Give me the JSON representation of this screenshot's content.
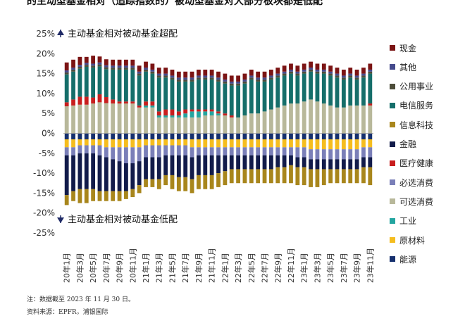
{
  "header": {
    "title": "的主动型基金相对（追踪指数的）被动型基金对大部分板块都是低配"
  },
  "footer": {
    "note": "注：数据截至 2023 年 11 月 30 日。",
    "source": "资料来源：EPFR，浦银国际"
  },
  "legend": [
    {
      "label": "现金",
      "color": "#7b1414"
    },
    {
      "label": "其他",
      "color": "#454a8c"
    },
    {
      "label": "公用事业",
      "color": "#4d4d3a"
    },
    {
      "label": "电信服务",
      "color": "#156e6a"
    },
    {
      "label": "信息科技",
      "color": "#a8861c"
    },
    {
      "label": "金融",
      "color": "#121b4a"
    },
    {
      "label": "医疗健康",
      "color": "#c81e1e"
    },
    {
      "label": "必选消费",
      "color": "#7a7fb8"
    },
    {
      "label": "可选消费",
      "color": "#b8b89a"
    },
    {
      "label": "工业",
      "color": "#23a5a0"
    },
    {
      "label": "原材料",
      "color": "#f5bd1f"
    },
    {
      "label": "能源",
      "color": "#16306e"
    }
  ],
  "chart_data": {
    "type": "bar",
    "stacked": true,
    "title": "",
    "xlabel": "",
    "ylabel": "",
    "ylim": [
      -25,
      25
    ],
    "y_ticks": [
      25,
      20,
      15,
      10,
      5,
      0,
      -5,
      -10,
      -15,
      -20,
      -25
    ],
    "y_tick_labels": [
      "25%",
      "20%",
      "15%",
      "10%",
      "5%",
      "0%",
      "-5%",
      "-10%",
      "-15%",
      "-20%",
      "-25%"
    ],
    "annotations": {
      "top": "主动基金相对被动基金超配",
      "bottom": "主动基金相对被动基金低配"
    },
    "categories": [
      "20年1月",
      "20年2月",
      "20年3月",
      "20年4月",
      "20年5月",
      "20年6月",
      "20年7月",
      "20年8月",
      "20年9月",
      "20年10月",
      "20年11月",
      "20年12月",
      "21年1月",
      "21年2月",
      "21年3月",
      "21年4月",
      "21年5月",
      "21年6月",
      "21年7月",
      "21年8月",
      "21年9月",
      "21年10月",
      "21年11月",
      "21年12月",
      "22年1月",
      "22年2月",
      "22年3月",
      "22年4月",
      "22年5月",
      "22年6月",
      "22年7月",
      "22年8月",
      "22年9月",
      "22年10月",
      "22年11月",
      "22年12月",
      "23年1月",
      "23年2月",
      "23年3月",
      "23年4月",
      "23年5月",
      "23年6月",
      "23年7月",
      "23年8月",
      "23年9月",
      "23年10月",
      "23年11月"
    ],
    "x_tick_labels": [
      "20年1月",
      "20年3月",
      "20年5月",
      "20年7月",
      "20年9月",
      "20年11月",
      "21年1月",
      "21年3月",
      "21年5月",
      "21年7月",
      "21年9月",
      "21年11月",
      "22年1月",
      "22年3月",
      "22年5月",
      "22年7月",
      "22年9月",
      "22年11月",
      "23年1月",
      "23年3月",
      "23年5月",
      "23年7月",
      "23年9月",
      "23年11月"
    ],
    "series": [
      {
        "name": "可选消费",
        "values": [
          6.8,
          7.0,
          7.2,
          7.2,
          7.5,
          7.8,
          7.6,
          7.5,
          7.5,
          7.5,
          7.5,
          6.5,
          6.5,
          6.5,
          4.0,
          4.0,
          4.0,
          4.0,
          4.0,
          4.0,
          4.0,
          4.5,
          4.5,
          4.5,
          4.5,
          4.0,
          4.0,
          4.5,
          5.0,
          5.0,
          5.5,
          6.0,
          6.5,
          7.0,
          7.5,
          7.5,
          8.0,
          8.5,
          8.0,
          7.5,
          7.0,
          6.5,
          6.5,
          7.0,
          7.0,
          7.0,
          7.0
        ]
      },
      {
        "name": "工业",
        "values": [
          0.0,
          0.0,
          0.0,
          0.0,
          0.0,
          0.0,
          0.0,
          0.0,
          0.0,
          0.0,
          0.0,
          0.0,
          0.5,
          0.5,
          0.5,
          0.5,
          0.5,
          0.5,
          1.0,
          1.5,
          1.5,
          1.0,
          1.0,
          0.5,
          0.0,
          0.0,
          0.0,
          0.0,
          0.0,
          0.0,
          0.0,
          0.0,
          0.0,
          0.0,
          0.0,
          0.0,
          0.0,
          0.0,
          0.0,
          0.0,
          0.0,
          0.0,
          0.0,
          0.0,
          0.0,
          0.0,
          0.0
        ]
      },
      {
        "name": "医疗健康",
        "values": [
          1.0,
          1.5,
          2.0,
          2.0,
          1.5,
          2.0,
          1.5,
          1.0,
          0.5,
          0.5,
          0.5,
          0.5,
          1.0,
          1.0,
          1.0,
          1.5,
          1.5,
          1.0,
          1.0,
          0.5,
          0.5,
          0.5,
          0.5,
          0.5,
          0.5,
          0.5,
          0.0,
          0.0,
          0.0,
          0.0,
          0.0,
          0.0,
          0.0,
          0.0,
          0.0,
          0.0,
          0.0,
          0.0,
          0.0,
          0.0,
          0.0,
          0.0,
          0.0,
          0.0,
          0.0,
          0.0,
          0.5
        ]
      },
      {
        "name": "电信服务",
        "values": [
          7.0,
          7.0,
          7.0,
          7.5,
          7.5,
          7.0,
          7.0,
          7.5,
          8.0,
          8.0,
          8.0,
          7.5,
          7.5,
          7.0,
          8.5,
          8.0,
          7.5,
          7.5,
          7.0,
          7.0,
          7.5,
          7.5,
          7.5,
          7.5,
          7.5,
          7.5,
          8.0,
          8.0,
          8.5,
          8.0,
          7.5,
          7.5,
          7.5,
          7.5,
          7.5,
          7.0,
          7.0,
          7.0,
          7.0,
          7.5,
          7.5,
          7.5,
          7.0,
          7.0,
          6.5,
          7.0,
          7.5
        ]
      },
      {
        "name": "公用事业",
        "values": [
          0.5,
          0.5,
          0.5,
          0.5,
          0.5,
          0.5,
          0.5,
          0.5,
          0.5,
          0.5,
          0.5,
          0.5,
          0.5,
          0.5,
          0.5,
          0.5,
          0.5,
          0.5,
          0.5,
          0.5,
          0.5,
          0.5,
          0.5,
          0.5,
          0.5,
          0.5,
          0.5,
          0.5,
          0.5,
          0.5,
          0.5,
          0.5,
          0.5,
          0.5,
          0.5,
          0.5,
          0.5,
          0.5,
          0.5,
          0.5,
          0.5,
          0.5,
          0.5,
          0.5,
          0.5,
          0.5,
          0.5
        ]
      },
      {
        "name": "其他",
        "values": [
          0.5,
          0.5,
          0.5,
          0.5,
          0.5,
          0.5,
          0.5,
          0.5,
          0.5,
          0.5,
          0.5,
          0.5,
          0.5,
          0.5,
          0.5,
          0.5,
          0.5,
          0.5,
          0.5,
          0.5,
          0.5,
          0.5,
          0.5,
          0.5,
          0.5,
          0.5,
          0.5,
          0.5,
          0.5,
          0.5,
          0.5,
          0.5,
          0.5,
          0.5,
          0.5,
          0.5,
          0.5,
          0.5,
          0.5,
          0.5,
          0.5,
          0.5,
          0.5,
          0.5,
          0.5,
          0.5,
          0.5
        ]
      },
      {
        "name": "现金",
        "values": [
          2.0,
          2.0,
          2.0,
          1.5,
          2.0,
          1.5,
          1.5,
          1.5,
          1.5,
          1.5,
          1.5,
          1.5,
          1.5,
          1.5,
          1.5,
          1.5,
          1.5,
          1.5,
          1.5,
          1.5,
          1.5,
          1.5,
          1.5,
          1.5,
          1.5,
          1.5,
          1.5,
          1.5,
          1.5,
          1.5,
          1.5,
          1.5,
          1.5,
          1.5,
          1.5,
          1.5,
          1.5,
          1.5,
          1.5,
          1.5,
          1.5,
          1.5,
          1.5,
          1.5,
          1.5,
          1.5,
          1.5
        ]
      },
      {
        "name": "能源",
        "values": [
          -1.5,
          -1.5,
          -1.5,
          -1.5,
          -1.5,
          -1.5,
          -1.5,
          -1.5,
          -1.5,
          -1.5,
          -1.5,
          -1.5,
          -1.5,
          -1.5,
          -1.5,
          -1.5,
          -1.5,
          -1.5,
          -1.5,
          -1.5,
          -1.5,
          -1.5,
          -1.5,
          -1.5,
          -1.5,
          -1.5,
          -1.5,
          -1.5,
          -1.5,
          -1.5,
          -1.5,
          -1.5,
          -1.5,
          -1.5,
          -1.5,
          -1.5,
          -1.5,
          -1.5,
          -1.5,
          -1.5,
          -1.5,
          -1.5,
          -1.5,
          -1.5,
          -1.5,
          -1.5,
          -1.5
        ]
      },
      {
        "name": "原材料",
        "values": [
          -2.0,
          -2.0,
          -1.5,
          -1.5,
          -1.5,
          -1.5,
          -2.0,
          -2.0,
          -2.0,
          -2.0,
          -2.0,
          -2.0,
          -1.5,
          -1.5,
          -1.5,
          -1.5,
          -1.5,
          -1.5,
          -1.5,
          -2.0,
          -2.0,
          -2.0,
          -2.0,
          -2.0,
          -2.0,
          -2.0,
          -2.0,
          -2.0,
          -2.0,
          -2.0,
          -2.0,
          -2.0,
          -2.0,
          -2.0,
          -2.0,
          -2.0,
          -2.0,
          -2.5,
          -2.5,
          -2.5,
          -2.5,
          -2.5,
          -2.5,
          -2.5,
          -2.5,
          -2.0,
          -2.0
        ]
      },
      {
        "name": "必选消费",
        "values": [
          -2.0,
          -2.0,
          -2.0,
          -2.0,
          -2.0,
          -2.5,
          -2.5,
          -3.0,
          -3.5,
          -4.0,
          -4.0,
          -3.5,
          -3.0,
          -3.0,
          -3.0,
          -2.5,
          -2.5,
          -2.5,
          -2.5,
          -2.5,
          -2.0,
          -2.0,
          -2.0,
          -2.0,
          -2.0,
          -2.0,
          -2.0,
          -2.0,
          -2.0,
          -2.0,
          -2.0,
          -2.0,
          -2.0,
          -2.0,
          -2.0,
          -2.5,
          -2.5,
          -2.5,
          -2.5,
          -2.5,
          -2.5,
          -2.5,
          -2.5,
          -2.5,
          -2.5,
          -2.5,
          -2.5
        ]
      },
      {
        "name": "金融",
        "values": [
          -10.0,
          -9.0,
          -9.0,
          -9.0,
          -9.0,
          -9.0,
          -8.5,
          -8.0,
          -7.5,
          -7.0,
          -6.5,
          -6.0,
          -5.5,
          -5.5,
          -5.5,
          -5.0,
          -5.0,
          -5.5,
          -5.5,
          -5.5,
          -5.0,
          -5.0,
          -5.0,
          -4.5,
          -4.0,
          -3.5,
          -3.5,
          -3.5,
          -3.5,
          -3.5,
          -3.5,
          -3.5,
          -3.0,
          -3.0,
          -2.5,
          -2.5,
          -2.5,
          -2.5,
          -2.5,
          -2.5,
          -2.5,
          -2.5,
          -2.5,
          -2.5,
          -2.5,
          -2.5,
          -2.5
        ]
      },
      {
        "name": "信息科技",
        "values": [
          -2.5,
          -2.5,
          -3.5,
          -3.5,
          -3.0,
          -2.5,
          -2.5,
          -2.5,
          -2.5,
          -2.0,
          -2.0,
          -2.0,
          -2.0,
          -2.0,
          -2.5,
          -2.5,
          -3.5,
          -3.5,
          -3.5,
          -3.5,
          -3.5,
          -3.5,
          -3.5,
          -3.5,
          -3.5,
          -3.5,
          -3.5,
          -3.5,
          -3.5,
          -3.5,
          -3.5,
          -3.5,
          -4.0,
          -4.0,
          -4.5,
          -4.5,
          -4.5,
          -4.5,
          -4.5,
          -4.0,
          -3.5,
          -3.5,
          -3.5,
          -3.5,
          -3.5,
          -4.0,
          -4.5
        ]
      }
    ]
  }
}
